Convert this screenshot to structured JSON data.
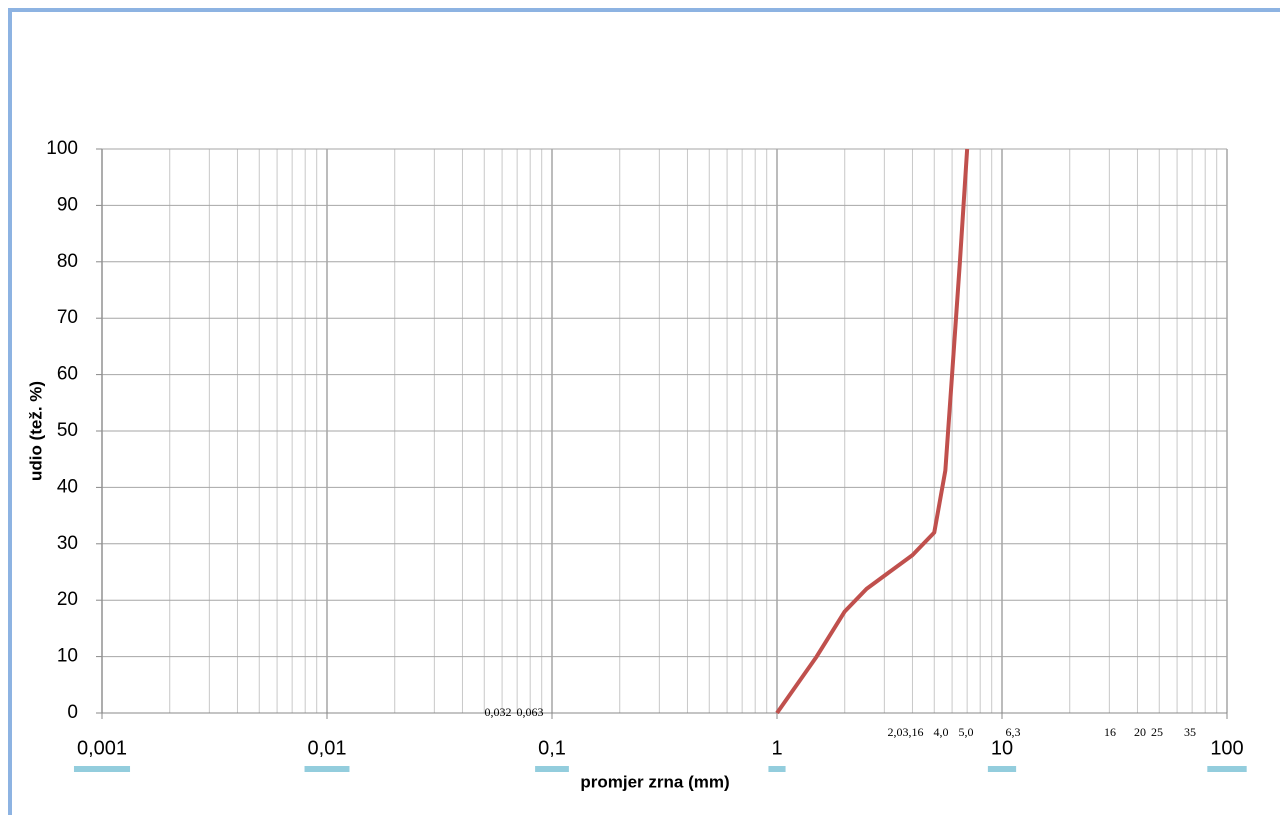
{
  "chart_data": {
    "type": "line",
    "x_label": "promjer zrna (mm)",
    "y_label": "udio (tež. %)",
    "x_log": true,
    "grid": true,
    "minor_grid": true,
    "xlim": [
      0.001,
      100
    ],
    "xticks": [
      {
        "value": 0.001,
        "label": "0,001"
      },
      {
        "value": 0.01,
        "label": "0,01"
      },
      {
        "value": 0.1,
        "label": "0,1"
      },
      1,
      10,
      100
    ],
    "ylim": [
      0,
      100
    ],
    "yticks": [
      0,
      10,
      20,
      30,
      40,
      50,
      60,
      70,
      80,
      90,
      100
    ],
    "annotations": [
      "0,032",
      "0,063",
      "2,0",
      "3,16",
      "4,0",
      "5,0",
      "6,3",
      "16",
      "20",
      "25",
      "35"
    ],
    "series": [
      {
        "color": "#c0504d",
        "x": [
          1,
          1.5,
          2,
          2.5,
          3.16,
          4,
          5,
          5.6,
          6,
          6.5,
          7
        ],
        "values": [
          0,
          10,
          18,
          22,
          25,
          28,
          32,
          43,
          60,
          80,
          100
        ]
      }
    ]
  }
}
